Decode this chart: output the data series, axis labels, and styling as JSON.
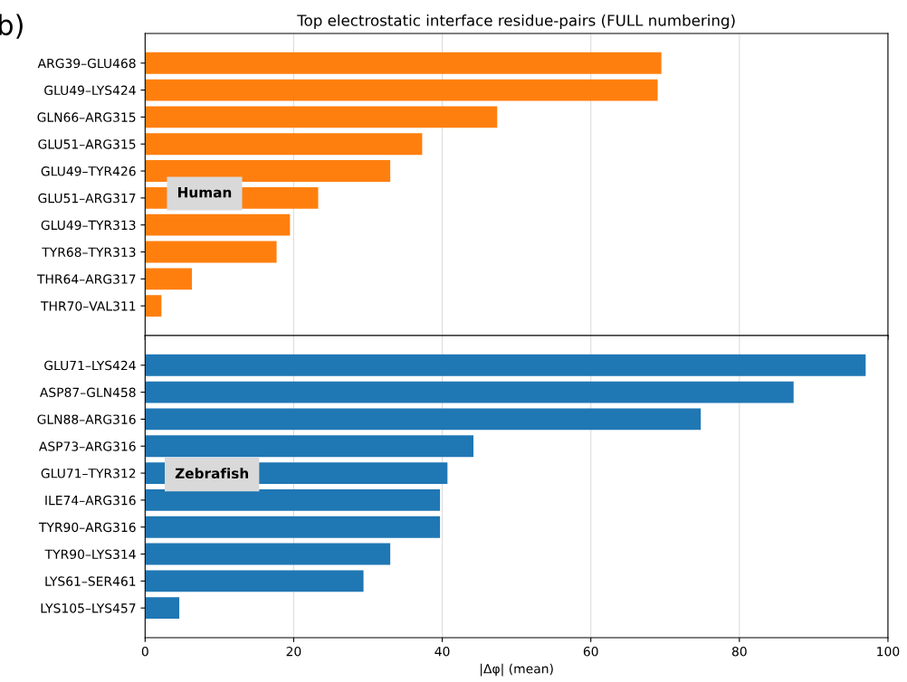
{
  "chart_data": [
    {
      "type": "bar",
      "orientation": "horizontal",
      "title": "Top electrostatic interface residue-pairs (FULL numbering)",
      "categories": [
        "ARG39–GLU468",
        "GLU49–LYS424",
        "GLN66–ARG315",
        "GLU51–ARG315",
        "GLU49–TYR426",
        "GLU51–ARG317",
        "GLU49–TYR313",
        "TYR68–TYR313",
        "THR64–ARG317",
        "THR70–VAL311"
      ],
      "values": [
        69.5,
        69.0,
        47.4,
        37.3,
        33.0,
        23.3,
        19.5,
        17.7,
        6.3,
        2.2
      ],
      "color": "#ff7f0e",
      "xlim": [
        0,
        100
      ],
      "xticks": [
        0,
        20,
        40,
        60,
        80,
        100
      ],
      "tick_labels": "y",
      "grid": "x",
      "annotations": [
        "b)",
        "Human"
      ]
    },
    {
      "type": "bar",
      "orientation": "horizontal",
      "xlabel": "|Δφ| (mean)",
      "categories": [
        "GLU71–LYS424",
        "ASP87–GLN458",
        "GLN88–ARG316",
        "ASP73–ARG316",
        "GLU71–TYR312",
        "ILE74–ARG316",
        "TYR90–ARG316",
        "TYR90–LYS314",
        "LYS61–SER461",
        "LYS105–LYS457"
      ],
      "values": [
        97.0,
        87.3,
        74.8,
        44.2,
        40.7,
        39.7,
        39.7,
        33.0,
        29.4,
        4.6
      ],
      "color": "#1f77b4",
      "xlim": [
        0,
        100
      ],
      "xticks": [
        0,
        20,
        40,
        60,
        80,
        100
      ],
      "grid": "x",
      "annotations": [
        "Zebrafish"
      ]
    }
  ]
}
